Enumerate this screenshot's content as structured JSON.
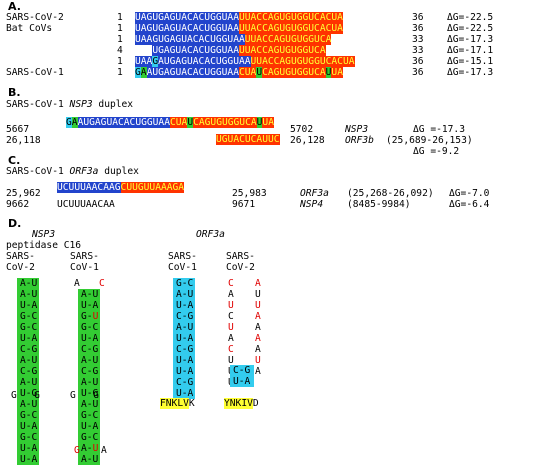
{
  "colors": {
    "blue": "#2244cc",
    "red_orange": "#ff3300",
    "cyan": "#33ccee",
    "green": "#33cc33",
    "yellow": "#ffff33",
    "red_text": "#e00000"
  },
  "section_a": {
    "label": "A.",
    "rows": [
      {
        "name": "SARS-CoV-2",
        "start": "1",
        "end": "36",
        "dg": "ΔG=-22.5",
        "segs": [
          {
            "t": "UAGUGAGUACACUGGUAA",
            "bg": "blue",
            "fg": "#ffffff"
          },
          {
            "t": "UUACCAGUGUGGUCACUA",
            "bg": "red_orange",
            "fg": "#ffff33"
          }
        ]
      },
      {
        "name": "Bat CoVs",
        "start": "1",
        "end": "36",
        "dg": "ΔG=-22.5",
        "segs": [
          {
            "t": "UAGUGAGUACACUGGUAA",
            "bg": "blue",
            "fg": "#ffffff"
          },
          {
            "t": "UUACCAGUGUGGUCACUA",
            "bg": "red_orange",
            "fg": "#ffff33"
          }
        ]
      },
      {
        "name": "",
        "start": "1",
        "end": "33",
        "dg": "ΔG=-17.3",
        "segs": [
          {
            "t": "UAAGUGAGUACACUGGUAA",
            "bg": "blue",
            "fg": "#ffffff"
          },
          {
            "t": "UUACCAGUGUGGUCA",
            "bg": "red_orange",
            "fg": "#ffff33"
          }
        ]
      },
      {
        "name": "",
        "start": "4",
        "end": "33",
        "dg": "ΔG=-17.1",
        "segs": [
          {
            "t": "   ",
            "bg": "",
            "fg": "#000"
          },
          {
            "t": "UGAGUACACUGGUAA",
            "bg": "blue",
            "fg": "#ffffff"
          },
          {
            "t": "UUACCAGUGUGGUCA",
            "bg": "red_orange",
            "fg": "#ffff33"
          }
        ]
      },
      {
        "name": "",
        "start": "1",
        "end": "36",
        "dg": "ΔG=-15.1",
        "segs": [
          {
            "t": "UAA",
            "bg": "blue",
            "fg": "#ffffff"
          },
          {
            "t": "G",
            "bg": "cyan",
            "fg": "#000"
          },
          {
            "t": "AUGAGUACACUGGUAA",
            "bg": "blue",
            "fg": "#ffffff"
          },
          {
            "t": "UUACCAGUGUGGUCACUA",
            "bg": "red_orange",
            "fg": "#ffff33"
          }
        ]
      },
      {
        "name": "SARS-CoV-1",
        "start": "1",
        "end": "36",
        "dg": "ΔG=-17.3",
        "segs": [
          {
            "t": "G",
            "bg": "cyan",
            "fg": "#000"
          },
          {
            "t": "A",
            "bg": "green",
            "fg": "#000"
          },
          {
            "t": "AUGAGUACACUGGUAA",
            "bg": "blue",
            "fg": "#ffffff"
          },
          {
            "t": "CUA",
            "bg": "red_orange",
            "fg": "#ffff33"
          },
          {
            "t": "U",
            "bg": "green",
            "fg": "#000"
          },
          {
            "t": "CAGUGUGGUCA",
            "bg": "red_orange",
            "fg": "#ffff33"
          },
          {
            "t": "U",
            "bg": "green",
            "fg": "#000"
          },
          {
            "t": "UA",
            "bg": "red_orange",
            "fg": "#ffff33"
          }
        ]
      }
    ]
  },
  "section_b": {
    "label": "B.",
    "title_prefix": "SARS-CoV-1 ",
    "title_gene": "NSP3",
    "title_suffix": " duplex",
    "row1_start": "5667",
    "row1_end": "5702",
    "row1_gene": "NSP3",
    "row1_dg": "ΔG =-17.3",
    "row1_segs": [
      {
        "t": "G",
        "bg": "cyan",
        "fg": "#000"
      },
      {
        "t": "A",
        "bg": "green",
        "fg": "#000"
      },
      {
        "t": "AUGAGUACACUGGUAA",
        "bg": "blue",
        "fg": "#ffffff"
      },
      {
        "t": "CUA",
        "bg": "red_orange",
        "fg": "#ffff33"
      },
      {
        "t": "U",
        "bg": "green",
        "fg": "#000"
      },
      {
        "t": "CAGUGUGGUCA",
        "bg": "red_orange",
        "fg": "#ffff33"
      },
      {
        "t": "U",
        "bg": "green",
        "fg": "#000"
      },
      {
        "t": "UA",
        "bg": "red_orange",
        "fg": "#ffff33"
      }
    ],
    "row2_start": "26,118",
    "row2_end": "26,128",
    "row2_gene": "ORF3b",
    "row2_range": "(25,689-26,153)",
    "row2_dg": "ΔG =-9.2",
    "row2_segs": [
      {
        "t": "UGUACUCAUUC",
        "bg": "red_orange",
        "fg": "#ffff33"
      }
    ]
  },
  "section_c": {
    "label": "C.",
    "title_prefix": "SARS-CoV-1 ",
    "title_gene": "ORF3a",
    "title_suffix": " duplex",
    "row1_start": "25,962",
    "row1_end": "25,983",
    "row1_gene": "ORF3a",
    "row1_range": "(25,268-26,092)",
    "row1_dg": "ΔG=-7.0",
    "row1_segs": [
      {
        "t": "UCUUUAACAAG",
        "bg": "blue",
        "fg": "#ffffff"
      },
      {
        "t": "CUUGUUAAAGA",
        "bg": "red_orange",
        "fg": "#ffff33"
      }
    ],
    "row2_start": "9662",
    "row2_seq": "UCUUUAACAA",
    "row2_end": "9671",
    "row2_gene": "NSP4",
    "row2_range": "(8485-9984)",
    "row2_dg": "ΔG=-6.4"
  },
  "section_d": {
    "label": "D.",
    "nsp3_title": "NSP3",
    "nsp3_subtitle": "peptidase C16",
    "orf3a_title": "ORF3a",
    "col_sars2_line1": "SARS-",
    "col_sars2_line2": "CoV-2",
    "col_sars1_line1": "SARS-",
    "col_sars1_line2": "CoV-1",
    "nsp3_cov2_top": [
      "A-U",
      "A-U",
      "U-A",
      "G-C",
      "G-C",
      "U-A",
      "C-G",
      "A-U",
      "C-G",
      "A-U",
      "U-G"
    ],
    "nsp3_cov2_loop": "G   G",
    "nsp3_cov2_bottom": [
      "A-U",
      "G-C",
      "U-A",
      "G-C",
      "U-A",
      "U-A"
    ],
    "nsp3_cov1_top_open": [
      "A",
      "C"
    ],
    "nsp3_cov1_top": [
      "A-U",
      "U-A",
      "G-U",
      "G-C",
      "U-A",
      "C-G",
      "A-U",
      "C-G",
      "A-U",
      "U-G"
    ],
    "nsp3_cov1_loop": "G   G",
    "nsp3_cov1_bottom": [
      "A-U",
      "G-C",
      "U-A",
      "G-C",
      "A-U",
      "A-U"
    ],
    "nsp3_cov1_bottom_open": [
      "G",
      "A"
    ],
    "orf3a_cov1_pairs": [
      "G-C",
      "A-U",
      "U-A",
      "C-G",
      "A-U",
      "U-A",
      "C-G",
      "U-A",
      "U-A",
      "C-G",
      "U-A"
    ],
    "orf3a_cov2_left": [
      "C",
      "A",
      "U",
      "C",
      "U",
      "A",
      "C",
      "U",
      "U",
      "U"
    ],
    "orf3a_cov2_right": [
      "A",
      "U",
      "U",
      "A",
      "A",
      "A",
      "A",
      "U",
      "A",
      ""
    ],
    "orf3a_cov2_pairs": [
      "C-G",
      "U-A"
    ],
    "peptide1_hl": "FNKLV",
    "peptide1_rest": "K",
    "peptide2_hl": "YNKIV",
    "peptide2_rest": "D"
  }
}
